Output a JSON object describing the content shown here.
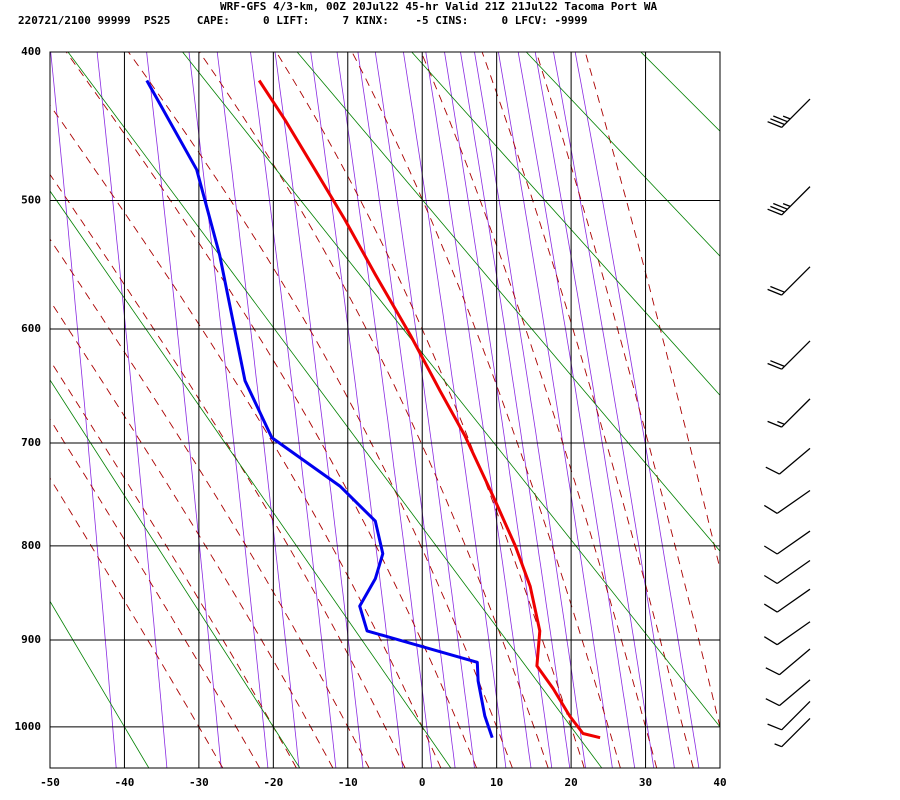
{
  "chart_data": {
    "type": "skewt",
    "title": "WRF-GFS 4/3-km, 00Z 20Jul22 45-hr Valid 21Z 21Jul22 Tacoma Port WA",
    "subtitle": "220721/2100 99999  PS25    CAPE:     0 LIFT:     7 KINX:    -5 CINS:     0 LFCV: -9999",
    "xlim": [
      -50,
      40
    ],
    "xticks": [
      -50,
      -40,
      -30,
      -20,
      -10,
      0,
      10,
      20,
      30,
      40
    ],
    "ylim": [
      400,
      1050
    ],
    "yticks": [
      400,
      500,
      600,
      700,
      800,
      900,
      1000
    ],
    "yscale": "pressure-kappa",
    "grid": true,
    "series": [
      {
        "color": "#ee0000",
        "x": [
          -21.9,
          -18.4,
          -14.4,
          -10.4,
          -6.3,
          -1.6,
          2.4,
          5.7,
          9.8,
          12.5,
          14.5,
          15.8,
          15.4,
          17.6,
          19.8,
          21.6,
          23.9
        ],
        "y": [
          418,
          444,
          478,
          514,
          556,
          605,
          653,
          693,
          755,
          800,
          842,
          890,
          929,
          955,
          987,
          1008,
          1013
        ]
      },
      {
        "color": "#0000ee",
        "x": [
          -37.0,
          -30.3,
          -27.2,
          -23.8,
          -20.2,
          -11.0,
          -6.3,
          -5.3,
          -6.3,
          -8.4,
          -7.4,
          7.4,
          7.5,
          8.4,
          9.4
        ],
        "y": [
          418,
          478,
          541,
          644,
          695,
          741,
          775,
          808,
          834,
          863,
          890,
          925,
          946,
          987,
          1013
        ]
      }
    ],
    "wind": {
      "pressure": [
        430,
        490,
        550,
        610,
        660,
        705,
        745,
        785,
        815,
        845,
        880,
        910,
        945,
        970,
        990
      ],
      "direction": [
        225,
        225,
        225,
        225,
        225,
        230,
        235,
        235,
        235,
        235,
        235,
        230,
        230,
        225,
        225
      ],
      "speed": [
        35,
        35,
        20,
        20,
        15,
        10,
        10,
        10,
        10,
        10,
        10,
        10,
        10,
        10,
        5
      ]
    }
  }
}
